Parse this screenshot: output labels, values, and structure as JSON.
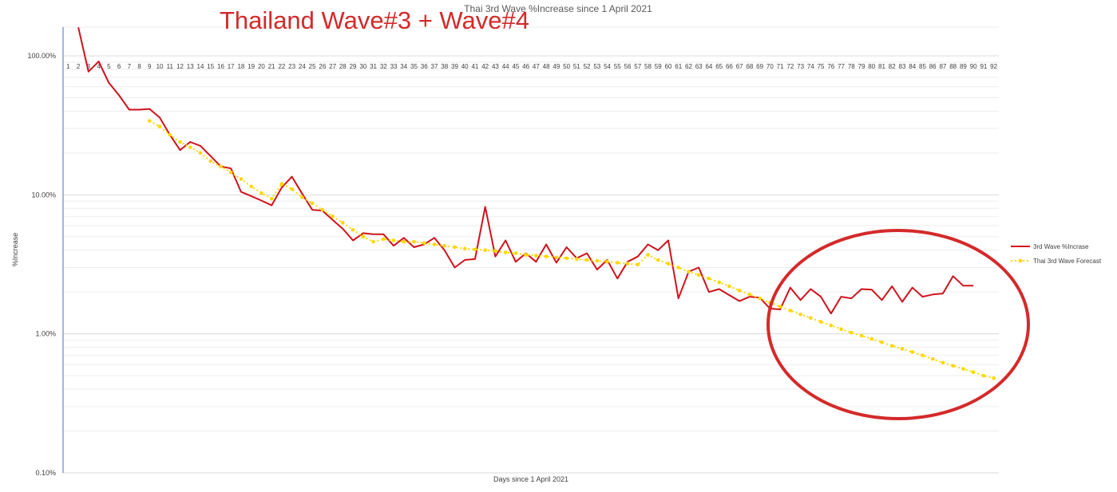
{
  "overlay_title": "Thailand Wave#3 + Wave#4",
  "chart_data": {
    "type": "line",
    "title": "Thai 3rd Wave %Increase since 1 April 2021",
    "xlabel": "Days since 1 April 2021",
    "ylabel": "%Increase",
    "y_scale": "log",
    "ylim": [
      0.1,
      100
    ],
    "y_ticks": [
      {
        "value": 100,
        "label": "100.00%"
      },
      {
        "value": 10,
        "label": "10.00%"
      },
      {
        "value": 1,
        "label": "1.00%"
      },
      {
        "value": 0.1,
        "label": "0.10%"
      }
    ],
    "categories": [
      "1",
      "2",
      "3",
      "4",
      "5",
      "6",
      "7",
      "8",
      "9",
      "10",
      "11",
      "12",
      "13",
      "14",
      "15",
      "16",
      "17",
      "18",
      "19",
      "20",
      "21",
      "22",
      "23",
      "24",
      "25",
      "26",
      "27",
      "28",
      "29",
      "30",
      "31",
      "32",
      "33",
      "34",
      "35",
      "36",
      "37",
      "38",
      "39",
      "40",
      "41",
      "42",
      "43",
      "44",
      "45",
      "46",
      "47",
      "48",
      "49",
      "50",
      "51",
      "52",
      "53",
      "54",
      "55",
      "56",
      "57",
      "58",
      "59",
      "60",
      "61",
      "62",
      "63",
      "64",
      "65",
      "66",
      "67",
      "68",
      "69",
      "70",
      "71",
      "72",
      "73",
      "74",
      "75",
      "76",
      "77",
      "78",
      "79",
      "80",
      "81",
      "82",
      "83",
      "84",
      "85",
      "86",
      "87",
      "88",
      "89",
      "90",
      "91",
      "92"
    ],
    "grid": true,
    "legend_position": "right",
    "annotation": {
      "type": "ellipse",
      "color": "#d42a2a",
      "around_days": [
        70,
        92
      ]
    },
    "series": [
      {
        "name": "3rd Wave %Incrase",
        "color": "#d0121b",
        "style": "solid",
        "x": [
          2,
          3,
          4,
          5,
          6,
          7,
          8,
          9,
          10,
          11,
          12,
          13,
          14,
          15,
          16,
          17,
          18,
          19,
          20,
          21,
          22,
          23,
          24,
          25,
          26,
          27,
          28,
          29,
          30,
          31,
          32,
          33,
          34,
          35,
          36,
          37,
          38,
          39,
          40,
          41,
          42,
          43,
          44,
          45,
          46,
          47,
          48,
          49,
          50,
          51,
          52,
          53,
          54,
          55,
          56,
          57,
          58,
          59,
          60,
          61,
          62,
          63,
          64,
          65,
          66,
          67,
          68,
          69,
          70,
          71,
          72,
          73,
          74,
          75,
          76,
          77,
          78,
          79,
          80,
          81,
          82,
          83,
          84,
          85,
          86,
          87,
          88,
          89,
          90
        ],
        "values": [
          160,
          77,
          91,
          64,
          52,
          41,
          41,
          41.5,
          36,
          27,
          21,
          24,
          22.5,
          19,
          16,
          15.5,
          10.5,
          9.8,
          9.1,
          8.4,
          11.3,
          13.5,
          10.2,
          7.8,
          7.7,
          6.6,
          5.7,
          4.7,
          5.3,
          5.2,
          5.2,
          4.3,
          4.9,
          4.2,
          4.4,
          4.9,
          4.0,
          3.0,
          3.4,
          3.45,
          8.2,
          3.6,
          4.7,
          3.3,
          3.8,
          3.3,
          4.4,
          3.25,
          4.2,
          3.5,
          3.8,
          2.9,
          3.4,
          2.5,
          3.3,
          3.6,
          4.4,
          4.0,
          4.7,
          1.8,
          2.8,
          3.0,
          2.0,
          2.1,
          1.9,
          1.72,
          1.85,
          1.82,
          1.52,
          1.5,
          2.15,
          1.75,
          2.1,
          1.85,
          1.4,
          1.85,
          1.8,
          2.1,
          2.08,
          1.75,
          2.2,
          1.7,
          2.15,
          1.85,
          1.92,
          1.95,
          2.6,
          2.22,
          2.22
        ]
      },
      {
        "name": "Thai 3rd Wave Forecast",
        "color": "#ffd700",
        "style": "dotted",
        "x": [
          9,
          10,
          11,
          12,
          13,
          14,
          15,
          16,
          17,
          18,
          19,
          20,
          21,
          22,
          23,
          24,
          25,
          26,
          27,
          28,
          29,
          30,
          31,
          32,
          33,
          34,
          35,
          36,
          37,
          38,
          39,
          40,
          41,
          42,
          43,
          44,
          45,
          46,
          47,
          48,
          49,
          50,
          51,
          52,
          53,
          54,
          55,
          56,
          57,
          58,
          59,
          60,
          61,
          62,
          63,
          64,
          65,
          66,
          67,
          68,
          69,
          70,
          71,
          72,
          73,
          74,
          75,
          76,
          77,
          78,
          79,
          80,
          81,
          82,
          83,
          84,
          85,
          86,
          87,
          88,
          89,
          90,
          91,
          92
        ],
        "values": [
          34,
          31,
          27,
          24,
          22,
          20,
          17.5,
          16,
          14.5,
          13,
          11.5,
          10.3,
          9.4,
          12,
          11,
          9.6,
          8.7,
          7.8,
          7.0,
          6.3,
          5.6,
          5.0,
          4.6,
          4.8,
          4.7,
          4.6,
          4.6,
          4.5,
          4.4,
          4.3,
          4.2,
          4.1,
          4.05,
          4.0,
          3.95,
          3.85,
          3.8,
          3.7,
          3.65,
          3.6,
          3.55,
          3.5,
          3.45,
          3.4,
          3.35,
          3.3,
          3.25,
          3.2,
          3.15,
          3.7,
          3.4,
          3.2,
          3.0,
          2.8,
          2.65,
          2.5,
          2.35,
          2.2,
          2.05,
          1.92,
          1.8,
          1.68,
          1.57,
          1.47,
          1.38,
          1.3,
          1.22,
          1.15,
          1.08,
          1.02,
          0.97,
          0.92,
          0.87,
          0.82,
          0.78,
          0.74,
          0.7,
          0.66,
          0.62,
          0.59,
          0.56,
          0.53,
          0.5,
          0.48
        ]
      }
    ]
  }
}
